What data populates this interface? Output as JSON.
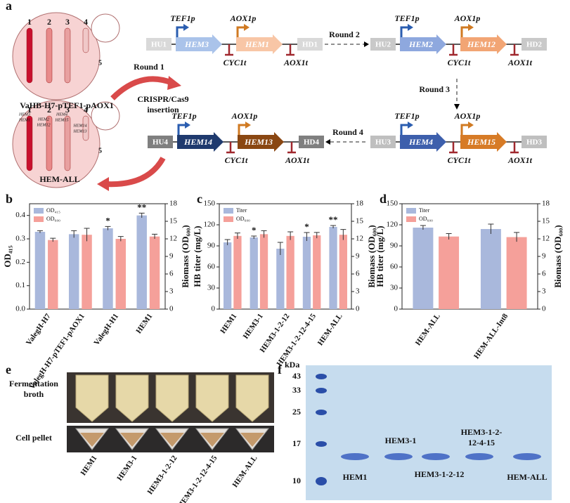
{
  "panel_labels": [
    "a",
    "b",
    "c",
    "d",
    "e",
    "f"
  ],
  "diagram": {
    "chromosomes": [
      "1",
      "2",
      "3",
      "4"
    ],
    "chr5": "5",
    "top_strain": "VaHB-H7-pTEF1-pAOX1",
    "bottom_strain": "HEM-ALL",
    "inserted_genes": [
      "HEM3",
      "HEM1",
      "HEM2",
      "HEM12",
      "HEM4",
      "HEM15",
      "HEM14",
      "HEM13"
    ],
    "round1": [
      "Round 1",
      "CRISPR/Cas9",
      "insertion"
    ],
    "rounds": [
      "Round 2",
      "Round 3",
      "Round 4"
    ],
    "constructs": [
      {
        "left": "HU1",
        "right": "HD1",
        "genes": [
          "HEM3",
          "HEM1"
        ],
        "promoters": [
          "TEF1p",
          "AOX1p"
        ],
        "terminators": [
          "CYC1t",
          "AOX1t"
        ],
        "box_color": "#d9d9d9",
        "gene_colors": [
          "#aac3ea",
          "#f8c6a6"
        ],
        "promoter_colors": [
          "#2a5db0",
          "#d07a22"
        ]
      },
      {
        "left": "HU2",
        "right": "HD2",
        "genes": [
          "HEM2",
          "HEM12"
        ],
        "promoters": [
          "TEF1p",
          "AOX1p"
        ],
        "terminators": [
          "CYC1t",
          "AOX1t"
        ],
        "box_color": "#c9c9c9",
        "gene_colors": [
          "#8ea8de",
          "#f2a574"
        ],
        "promoter_colors": [
          "#2a5db0",
          "#d07a22"
        ]
      },
      {
        "left": "HU3",
        "right": "HD3",
        "genes": [
          "HEM4",
          "HEM15"
        ],
        "promoters": [
          "TEF1p",
          "AOX1p"
        ],
        "terminators": [
          "CYC1t",
          "AOX1t"
        ],
        "box_color": "#bfbfbf",
        "gene_colors": [
          "#3d5fac",
          "#d77b26"
        ],
        "promoter_colors": [
          "#2a5db0",
          "#d07a22"
        ]
      },
      {
        "left": "HU4",
        "right": "HD4",
        "genes": [
          "HEM14",
          "HEM13"
        ],
        "promoters": [
          "TEF1p",
          "AOX1p"
        ],
        "terminators": [
          "CYC1t",
          "AOX1t"
        ],
        "box_color": "#7f7f7f",
        "gene_colors": [
          "#1f3a6e",
          "#8a4712"
        ],
        "promoter_colors": [
          "#2a5db0",
          "#d07a22"
        ]
      }
    ]
  },
  "chart_data": [
    {
      "type": "bar",
      "y_label": "OD₄₁₅",
      "y2_label": "Biomass (OD₆₀₀)",
      "categories": [
        "ValegH-H7",
        "ValegH-H7-pTEF1-pAOX1",
        "ValegH-H1",
        "HEM1"
      ],
      "series": [
        {
          "name": "OD₄₁₅",
          "color": "#a9b8dc",
          "values": [
            0.33,
            0.32,
            0.345,
            0.4
          ],
          "errors": [
            0.005,
            0.015,
            0.008,
            0.01
          ]
        },
        {
          "name": "OD₆₀₀",
          "color": "#f5a09a",
          "axis": "y2",
          "values": [
            11.8,
            12.7,
            12.0,
            12.4
          ],
          "errors": [
            0.3,
            1.1,
            0.4,
            0.4
          ]
        }
      ],
      "significance": [
        null,
        null,
        "*",
        "**"
      ],
      "ylim": [
        0,
        0.45
      ],
      "yticks": [
        {
          "value": 0,
          "label": "0.0"
        },
        0.1,
        0.2,
        0.3,
        0.4
      ],
      "y2lim": [
        0,
        18
      ],
      "y2ticks": [
        0,
        3,
        6,
        9,
        12,
        15,
        18
      ],
      "legend": "upper left"
    },
    {
      "type": "bar",
      "y_label": "HB titer (mg/L)",
      "y2_label": "Biomass (OD₆₀₀)",
      "categories": [
        "HEM1",
        "HEM3-1",
        "HEM3-1-2-12",
        "HEM3-1-2-12-4-15",
        "HEM-ALL"
      ],
      "series": [
        {
          "name": "Titer",
          "color": "#a9b8dc",
          "values": [
            95,
            102,
            86,
            103,
            117
          ],
          "errors": [
            4,
            2,
            9,
            6,
            2
          ]
        },
        {
          "name": "OD₆₀₀",
          "color": "#f5a09a",
          "axis": "y2",
          "values": [
            12.5,
            12.8,
            12.5,
            12.6,
            12.7
          ],
          "errors": [
            0.5,
            0.6,
            0.7,
            0.5,
            0.9
          ]
        }
      ],
      "significance": [
        null,
        "*",
        null,
        "*",
        "**"
      ],
      "ylim": [
        0,
        150
      ],
      "yticks": [
        0,
        30,
        60,
        90,
        120,
        150
      ],
      "y2lim": [
        0,
        18
      ],
      "y2ticks": [
        0,
        3,
        6,
        9,
        12,
        15,
        18
      ],
      "legend": "upper left"
    },
    {
      "type": "bar",
      "y_label": "HB titer (mg/L)",
      "y2_label": "Biomass (OD₆₀₀)",
      "categories": [
        "HEM-ALL",
        "HEM-ALL-Int8"
      ],
      "series": [
        {
          "name": "Titer",
          "color": "#a9b8dc",
          "values": [
            116,
            114
          ],
          "errors": [
            3,
            7
          ]
        },
        {
          "name": "OD₆₀₀",
          "color": "#f5a09a",
          "axis": "y2",
          "values": [
            12.4,
            12.3
          ],
          "errors": [
            0.5,
            0.8
          ]
        }
      ],
      "ylim": [
        0,
        150
      ],
      "yticks": [
        0,
        30,
        60,
        90,
        120,
        150
      ],
      "y2lim": [
        0,
        18
      ],
      "y2ticks": [
        0,
        3,
        6,
        9,
        12,
        15,
        18
      ],
      "legend": "upper left"
    }
  ],
  "photos": {
    "row_labels": [
      "Fermentation broth",
      "Cell pellet"
    ],
    "samples": [
      "HEM1",
      "HEM3-1",
      "HEM3-1-2-12",
      "HEM3-1-2-12-4-15",
      "HEM-ALL"
    ]
  },
  "gel": {
    "unit": "kDa",
    "markers": [
      43,
      33,
      25,
      17,
      10
    ],
    "lanes": [
      "HEM1",
      "HEM3-1",
      "HEM3-1-2-12",
      "HEM3-1-2-12-4-15",
      "HEM-ALL"
    ]
  }
}
